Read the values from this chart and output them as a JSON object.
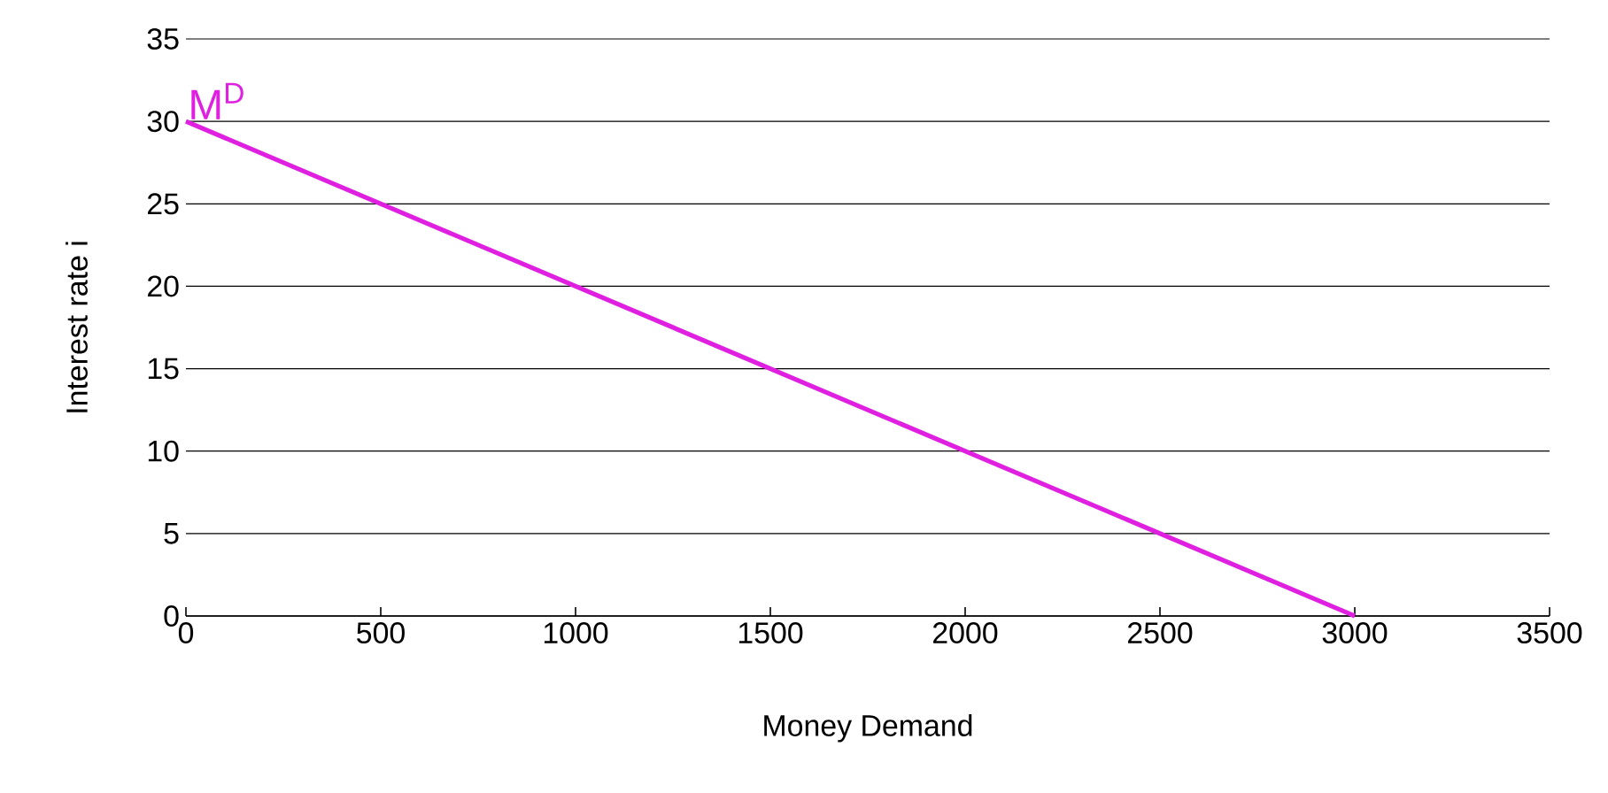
{
  "chart_data": {
    "type": "line",
    "xlabel": "Money Demand",
    "ylabel": "Interest rate i",
    "x": [
      0,
      3000
    ],
    "series": [
      {
        "name": "M$^{D}$",
        "color": "#e020e0",
        "values": [
          30,
          0
        ]
      }
    ],
    "xlim": [
      0,
      3500
    ],
    "xticks": [
      0,
      500,
      1000,
      1500,
      2000,
      2500,
      3000,
      3500
    ],
    "ylim": [
      0,
      35
    ],
    "yticks": [
      0,
      5,
      10,
      15,
      20,
      25,
      30,
      35
    ],
    "grid": "y",
    "legend": false,
    "marker": "none",
    "line_style": "solid"
  }
}
